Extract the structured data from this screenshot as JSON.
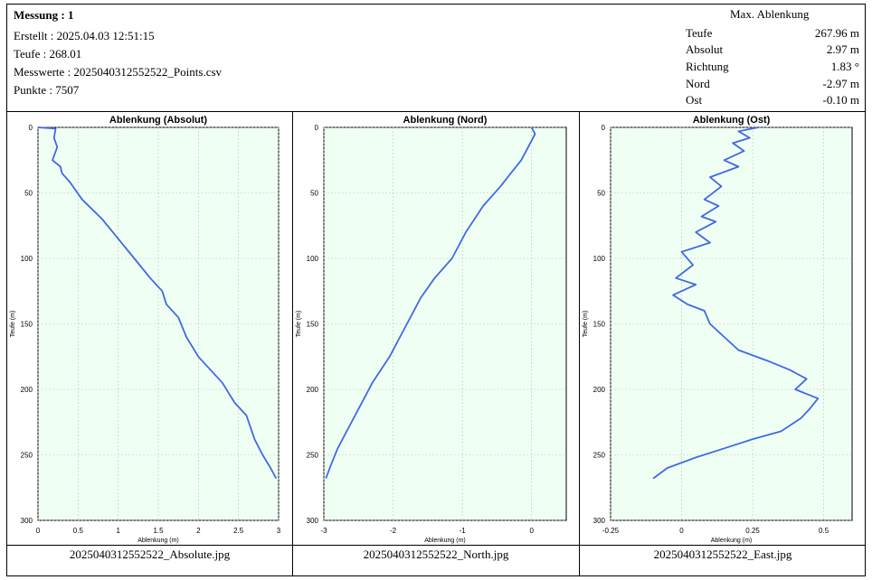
{
  "header": {
    "title": "Messung : 1",
    "created": "Erstellt : 2025.04.03 12:51:15",
    "depth": "Teufe : 268.01",
    "values_file": "Messwerte : 2025040312552522_Points.csv",
    "points": "Punkte : 7507"
  },
  "max_deflection": {
    "heading": "Max. Ablenkung",
    "rows": [
      {
        "label": "Teufe",
        "value": "267.96 m"
      },
      {
        "label": "Absolut",
        "value": "2.97 m"
      },
      {
        "label": "Richtung",
        "value": "1.83 °"
      },
      {
        "label": "Nord",
        "value": "-2.97 m"
      },
      {
        "label": "Ost",
        "value": "-0.10 m"
      }
    ]
  },
  "captions": [
    "2025040312552522_Absolute.jpg",
    "2025040312552522_North.jpg",
    "2025040312552522_East.jpg"
  ],
  "colors": {
    "line": "#4169e1",
    "plot_bg": "#f0fff4",
    "grid": "#b8c8b8"
  },
  "chart_data": [
    {
      "type": "line",
      "title": "Ablenkung (Absolut)",
      "xlabel": "Ablenkung (m)",
      "ylabel": "Teufe (m)",
      "xlim": [
        0,
        3
      ],
      "ylim": [
        300,
        0
      ],
      "xticks": [
        "0",
        "0.5",
        "1",
        "1.5",
        "2",
        "2.5",
        "3"
      ],
      "yticks": [
        "0",
        "50",
        "100",
        "150",
        "200",
        "250",
        "300"
      ],
      "grid": true,
      "series": [
        {
          "x": [
            0.0,
            0.22,
            0.2,
            0.24,
            0.18,
            0.28,
            0.3,
            0.4,
            0.55,
            0.8,
            1.0,
            1.2,
            1.4,
            1.55,
            1.6,
            1.75,
            1.85,
            2.0,
            2.3,
            2.45,
            2.6,
            2.7,
            2.8,
            2.9,
            2.97
          ],
          "y": [
            0,
            1,
            8,
            15,
            25,
            30,
            35,
            42,
            55,
            70,
            85,
            100,
            115,
            125,
            135,
            145,
            160,
            175,
            195,
            210,
            220,
            238,
            250,
            260,
            268
          ]
        }
      ]
    },
    {
      "type": "line",
      "title": "Ablenkung (Nord)",
      "xlabel": "Ablenkung (m)",
      "ylabel": "Teufe (m)",
      "xlim": [
        -3,
        0.5
      ],
      "ylim": [
        300,
        0
      ],
      "xticks": [
        "-3",
        "-2",
        "-1",
        "0"
      ],
      "yticks": [
        "0",
        "50",
        "100",
        "150",
        "200",
        "250",
        "300"
      ],
      "grid": true,
      "series": [
        {
          "x": [
            0.0,
            0.05,
            -0.05,
            -0.15,
            -0.3,
            -0.45,
            -0.7,
            -0.95,
            -1.15,
            -1.4,
            -1.6,
            -1.75,
            -1.9,
            -2.05,
            -2.3,
            -2.5,
            -2.65,
            -2.8,
            -2.9,
            -2.97
          ],
          "y": [
            0,
            5,
            15,
            25,
            35,
            45,
            60,
            80,
            100,
            115,
            130,
            145,
            160,
            175,
            195,
            215,
            230,
            245,
            258,
            268
          ]
        }
      ]
    },
    {
      "type": "line",
      "title": "Ablenkung (Ost)",
      "xlabel": "Ablenkung (m)",
      "ylabel": "Teufe (m)",
      "xlim": [
        -0.25,
        0.6
      ],
      "ylim": [
        300,
        0
      ],
      "xticks": [
        "-0.25",
        "0",
        "0.25",
        "0.5"
      ],
      "yticks": [
        "0",
        "50",
        "100",
        "150",
        "200",
        "250",
        "300"
      ],
      "grid": true,
      "series": [
        {
          "x": [
            0.27,
            0.2,
            0.24,
            0.18,
            0.22,
            0.15,
            0.2,
            0.1,
            0.14,
            0.08,
            0.13,
            0.07,
            0.12,
            0.05,
            0.1,
            0.0,
            0.04,
            -0.02,
            0.05,
            -0.03,
            0.02,
            0.08,
            0.1,
            0.15,
            0.2,
            0.3,
            0.38,
            0.44,
            0.4,
            0.48,
            0.45,
            0.42,
            0.35,
            0.25,
            0.15,
            0.05,
            -0.05,
            -0.1
          ],
          "y": [
            0,
            3,
            8,
            12,
            18,
            25,
            30,
            38,
            45,
            55,
            60,
            68,
            72,
            80,
            88,
            95,
            105,
            115,
            120,
            128,
            135,
            140,
            150,
            160,
            170,
            178,
            185,
            192,
            200,
            207,
            215,
            222,
            232,
            238,
            245,
            252,
            260,
            268
          ]
        }
      ]
    }
  ]
}
